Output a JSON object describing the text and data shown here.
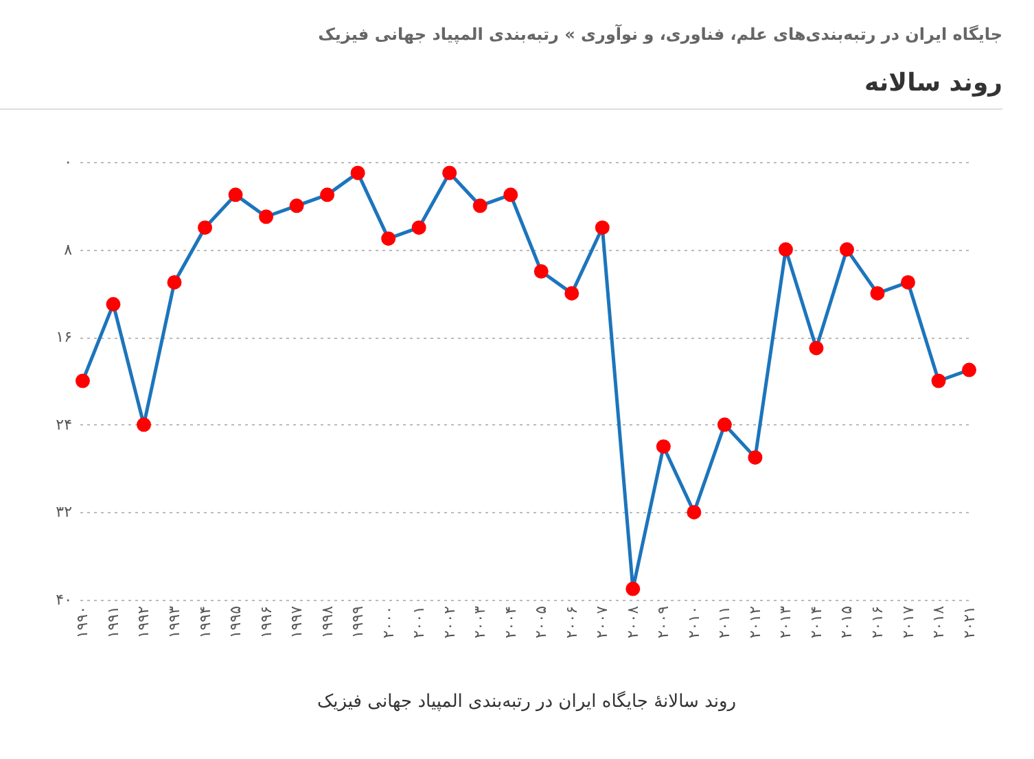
{
  "chart_data": {
    "type": "line",
    "title": "روند سالانه",
    "xlabel": "روند سالانهٔ جایگاه ایران در رتبه‌بندی المپیاد جهانی فیزیک",
    "annotations": [
      "جایگاه ایران در رتبه‌بندی‌های علم، فناوری، و نوآوری » رتبه‌بندی المپیاد جهانی فیزیک"
    ],
    "categories": [
      "۱۹۹۰",
      "۱۹۹۱",
      "۱۹۹۲",
      "۱۹۹۳",
      "۱۹۹۴",
      "۱۹۹۵",
      "۱۹۹۶",
      "۱۹۹۷",
      "۱۹۹۸",
      "۱۹۹۹",
      "۲۰۰۰",
      "۲۰۰۱",
      "۲۰۰۲",
      "۲۰۰۳",
      "۲۰۰۴",
      "۲۰۰۵",
      "۲۰۰۶",
      "۲۰۰۷",
      "۲۰۰۸",
      "۲۰۰۹",
      "۲۰۱۰",
      "۲۰۱۱",
      "۲۰۱۲",
      "۲۰۱۳",
      "۲۰۱۴",
      "۲۰۱۵",
      "۲۰۱۶",
      "۲۰۱۷",
      "۲۰۱۸",
      "۲۰۲۱"
    ],
    "series": [
      {
        "color": "#1c75bc",
        "colors": [
          "#ff0000",
          "#ff0000",
          "#ff0000",
          "#ff0000",
          "#ff0000",
          "#ff0000",
          "#ff0000",
          "#ff0000",
          "#ff0000",
          "#ff0000",
          "#ff0000",
          "#ff0000",
          "#ff0000",
          "#ff0000",
          "#ff0000",
          "#ff0000",
          "#ff0000",
          "#ff0000",
          "#ff0000",
          "#ff0000",
          "#ff0000",
          "#ff0000",
          "#ff0000",
          "#ff0000",
          "#ff0000",
          "#ff0000",
          "#ff0000",
          "#ff0000",
          "#ff0000",
          "#ff0000"
        ],
        "values": [
          20,
          13,
          24,
          11,
          6,
          3,
          5,
          4,
          3,
          1,
          7,
          6,
          1,
          4,
          3,
          10,
          12,
          6,
          39,
          26,
          32,
          24,
          27,
          8,
          17,
          8,
          12,
          11,
          20,
          19
        ]
      }
    ],
    "ylim": [
      40,
      0
    ],
    "yticks": [
      {
        "value": 0,
        "label": "۰"
      },
      {
        "value": 8,
        "label": "۸"
      },
      {
        "value": 16,
        "label": "۱۶"
      },
      {
        "value": 24,
        "label": "۲۴"
      },
      {
        "value": 32,
        "label": "۳۲"
      },
      {
        "value": 40,
        "label": "۴۰"
      }
    ],
    "grid": "y",
    "marker": "circle",
    "line_style": "solid"
  }
}
